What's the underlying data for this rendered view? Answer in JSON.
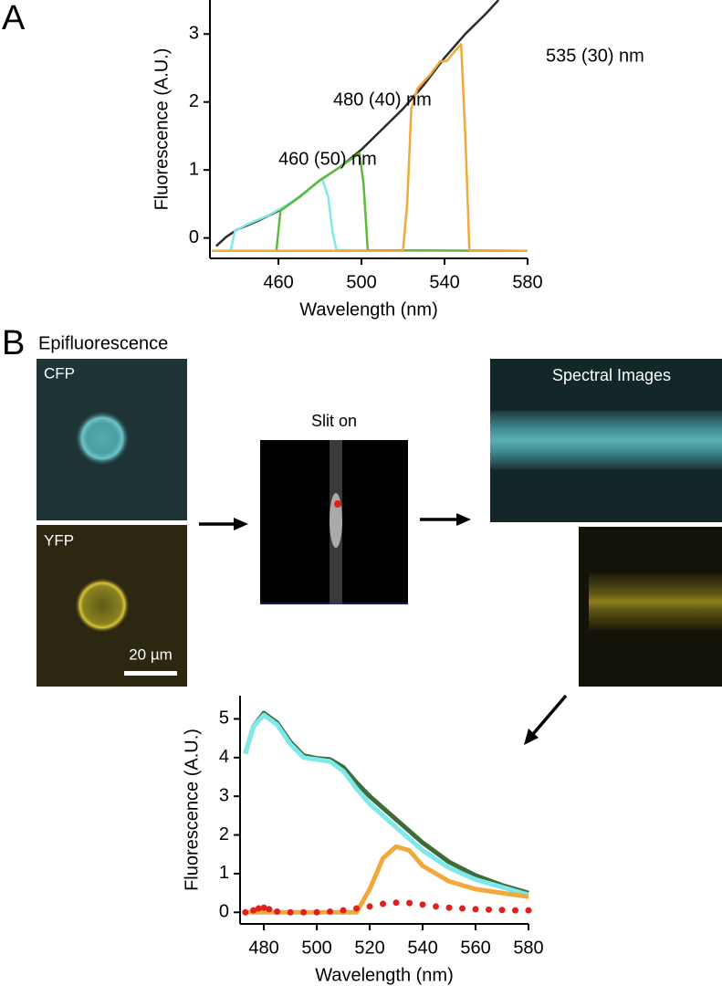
{
  "panel_labels": [
    "A",
    "B"
  ],
  "images": {
    "heading": "Epifluorescence",
    "cfp": "CFP",
    "yfp": "YFP",
    "scale_bar": "20 µm",
    "slit": "Slit on",
    "spectral": "Spectral Images"
  },
  "chart_data": [
    {
      "type": "line",
      "xlabel": "Wavelength (nm)",
      "ylabel": "Fluorescence (A.U.)",
      "xlim": [
        427,
        580
      ],
      "xticks": [
        460,
        500,
        540,
        580
      ],
      "ylim": [
        -0.3,
        3.5
      ],
      "yticks": [
        0,
        1,
        2,
        3
      ],
      "series": [
        {
          "color": "#2b2b2b",
          "x": [
            430,
            435,
            440,
            450,
            460,
            470,
            480,
            490,
            500,
            510,
            520,
            530,
            540,
            550,
            560,
            566
          ],
          "values": [
            -0.12,
            0.02,
            0.12,
            0.25,
            0.4,
            0.6,
            0.85,
            1.05,
            1.3,
            1.6,
            1.9,
            2.25,
            2.65,
            3.0,
            3.3,
            3.5
          ]
        },
        {
          "name": "460 (50) nm",
          "color": "#7ee8ea",
          "x": [
            428,
            437,
            439,
            445,
            455,
            465,
            475,
            481,
            484,
            486,
            488,
            580
          ],
          "values": [
            -0.19,
            -0.19,
            0.1,
            0.2,
            0.33,
            0.5,
            0.72,
            0.88,
            0.6,
            0.1,
            -0.18,
            -0.19
          ]
        },
        {
          "name": "480 (40) nm",
          "color": "#5cbc3a",
          "x": [
            428,
            459,
            461,
            470,
            480,
            490,
            499,
            501,
            503,
            580
          ],
          "values": [
            -0.19,
            -0.19,
            0.4,
            0.6,
            0.85,
            1.05,
            1.25,
            0.8,
            -0.18,
            -0.19
          ]
        },
        {
          "name": "535 (30) nm",
          "color": "#f2a93b",
          "x": [
            428,
            520,
            522,
            524,
            527,
            533,
            538,
            541,
            545,
            548,
            550,
            552,
            580
          ],
          "values": [
            -0.19,
            -0.19,
            0.5,
            1.9,
            2.2,
            2.4,
            2.6,
            2.6,
            2.75,
            2.85,
            1.5,
            -0.18,
            -0.19
          ]
        }
      ]
    },
    {
      "type": "line",
      "xlabel": "Wavelength (nm)",
      "ylabel": "Fluorescence (A.U.)",
      "xlim": [
        471,
        580
      ],
      "xticks": [
        480,
        500,
        520,
        540,
        560,
        580
      ],
      "ylim": [
        -0.3,
        5.6
      ],
      "yticks": [
        0,
        1,
        2,
        3,
        4,
        5
      ],
      "series": [
        {
          "color": "#3e6b3a",
          "x": [
            473,
            476,
            480,
            485,
            490,
            495,
            500,
            505,
            510,
            515,
            520,
            530,
            540,
            550,
            560,
            570,
            580
          ],
          "values": [
            4.1,
            4.8,
            5.15,
            4.9,
            4.4,
            4.05,
            3.98,
            3.95,
            3.75,
            3.35,
            3.0,
            2.4,
            1.8,
            1.3,
            0.95,
            0.7,
            0.5
          ]
        },
        {
          "color": "#7ee8ea",
          "x": [
            473,
            476,
            480,
            485,
            490,
            495,
            500,
            505,
            510,
            515,
            520,
            530,
            540,
            550,
            560,
            570,
            580
          ],
          "values": [
            4.1,
            4.8,
            5.1,
            4.85,
            4.35,
            4.0,
            3.95,
            3.9,
            3.65,
            3.2,
            2.8,
            2.2,
            1.6,
            1.15,
            0.85,
            0.65,
            0.45
          ]
        },
        {
          "color": "#f2a93b",
          "x": [
            473,
            500,
            515,
            520,
            525,
            530,
            535,
            540,
            550,
            560,
            570,
            580
          ],
          "values": [
            0,
            0,
            0,
            0.6,
            1.4,
            1.7,
            1.6,
            1.2,
            0.8,
            0.6,
            0.5,
            0.4
          ]
        },
        {
          "color": "#e0201c",
          "marker": "dots",
          "x": [
            473,
            476,
            478,
            480,
            482,
            485,
            490,
            495,
            500,
            505,
            510,
            515,
            520,
            525,
            530,
            535,
            540,
            545,
            550,
            555,
            560,
            565,
            570,
            575,
            580
          ],
          "values": [
            0,
            0.05,
            0.1,
            0.12,
            0.08,
            0.02,
            0,
            0,
            0,
            0.02,
            0.05,
            0.1,
            0.15,
            0.22,
            0.25,
            0.24,
            0.2,
            0.15,
            0.12,
            0.1,
            0.08,
            0.07,
            0.06,
            0.05,
            0.05
          ]
        }
      ]
    }
  ]
}
